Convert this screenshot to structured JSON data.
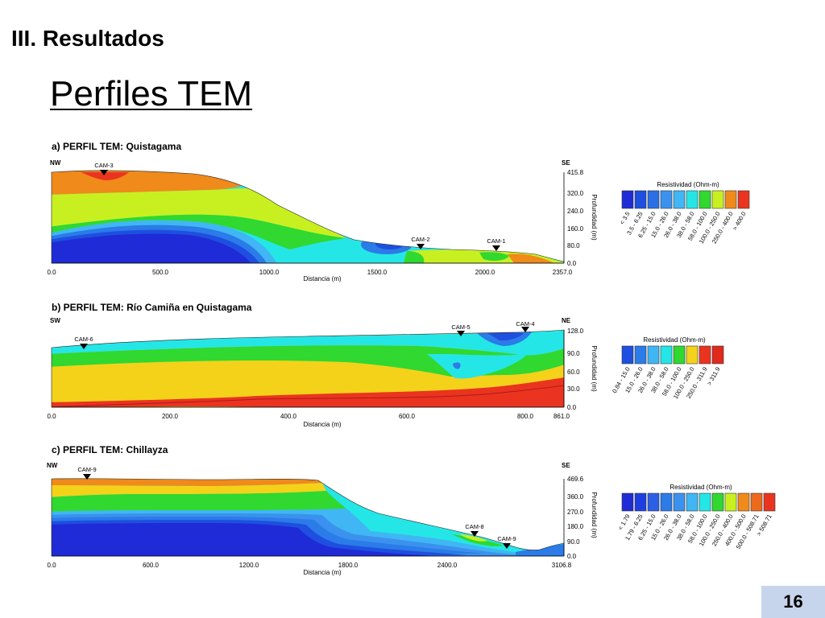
{
  "slide": {
    "section_title": "III. Resultados",
    "main_title": "Perfiles TEM",
    "page_number": "16"
  },
  "colors": {
    "deep_blue": "#1f2bd6",
    "blue": "#1e4fe0",
    "mid_blue": "#2b7be8",
    "light_blue": "#3fa4f0",
    "cyan": "#25e6e6",
    "green": "#30d830",
    "yellow_green": "#c8f020",
    "yellow": "#f4d21a",
    "orange": "#f08a1a",
    "red": "#ea3420",
    "page_box": "#c6d5ec"
  },
  "profiles": [
    {
      "title": "a) PERFIL TEM: Quistagama",
      "left_dir": "NW",
      "right_dir": "SE",
      "stations": [
        "CAM-3",
        "CAM-2",
        "CAM-1"
      ],
      "x_ticks": [
        "0.0",
        "500.0",
        "1000.0",
        "1500.0",
        "2000.0",
        "2357.0"
      ],
      "depth_ticks": [
        "415.8",
        "320.0",
        "240.0",
        "160.0",
        "80.0",
        "0.0"
      ],
      "x_label": "Distancia (m)",
      "y_label": "Profundidad (m)",
      "legend_title": "Resistividad (Ohm-m)",
      "legend_labels": [
        "< 3.5",
        "3.5 - 6.25",
        "6.25 - 15.0",
        "15.0 - 26.0",
        "26.0 - 38.0",
        "38.0 - 58.0",
        "58.0 - 100.0",
        "100.0 - 250.0",
        "250.0 - 400.0",
        "> 400.0"
      ],
      "legend_colors": [
        "#1f2bd6",
        "#1e4fe0",
        "#2b6fe6",
        "#3a92ee",
        "#40b6f4",
        "#25e6e6",
        "#30d830",
        "#c8f020",
        "#f08a1a",
        "#ea3420"
      ]
    },
    {
      "title": "b) PERFIL TEM: Río Camiña en Quistagama",
      "left_dir": "SW",
      "right_dir": "NE",
      "stations": [
        "CAM-6",
        "CAM-5",
        "CAM-4"
      ],
      "x_ticks": [
        "0.0",
        "200.0",
        "400.0",
        "600.0",
        "800.0",
        "861.0"
      ],
      "depth_ticks": [
        "128.0",
        "90.0",
        "60.0",
        "30.0",
        "0.0"
      ],
      "x_label": "Distancia (m)",
      "y_label": "Profundidad (m)",
      "legend_title": "Resistividad (Ohm-m)",
      "legend_labels": [
        "0.84 - 15.0",
        "15.0 - 26.0",
        "26.0 - 38.0",
        "38.0 - 58.0",
        "58.0 - 100.0",
        "100.0 - 250.0",
        "250.0 - 311.9",
        "> 311.9"
      ],
      "legend_colors": [
        "#1e4fe0",
        "#2b7be8",
        "#40b6f4",
        "#25e6e6",
        "#30d830",
        "#f4d21a",
        "#ea3420",
        "#e02a1c"
      ]
    },
    {
      "title": "c) PERFIL TEM: Chillayza",
      "left_dir": "NW",
      "right_dir": "SE",
      "stations": [
        "CAM-9",
        "CAM-8",
        "CAM-9"
      ],
      "x_ticks": [
        "0.0",
        "600.0",
        "1200.0",
        "1800.0",
        "2400.0",
        "3106.8"
      ],
      "depth_ticks": [
        "469.6",
        "360.0",
        "270.0",
        "180.0",
        "90.0",
        "0.0"
      ],
      "x_label": "Distancia (m)",
      "y_label": "Profundidad (m)",
      "legend_title": "Resistividad (Ohm-m)",
      "legend_labels": [
        "< 1.79",
        "1.79 - 6.25",
        "6.25 - 15.0",
        "15.0 - 26.0",
        "26.0 - 38.0",
        "38.0 - 58.0",
        "58.0 - 100.0",
        "100.0 - 250.0",
        "250.0 - 400.0",
        "400.0 - 500.0",
        "500.0 - 508.71",
        "> 508.71"
      ],
      "legend_colors": [
        "#1f2bd6",
        "#1e3fe0",
        "#2b5fe6",
        "#2b7be8",
        "#3a92ee",
        "#40b6f4",
        "#25e6e6",
        "#30d830",
        "#c8f020",
        "#f08a1a",
        "#ec6a1c",
        "#ea3420"
      ]
    }
  ]
}
